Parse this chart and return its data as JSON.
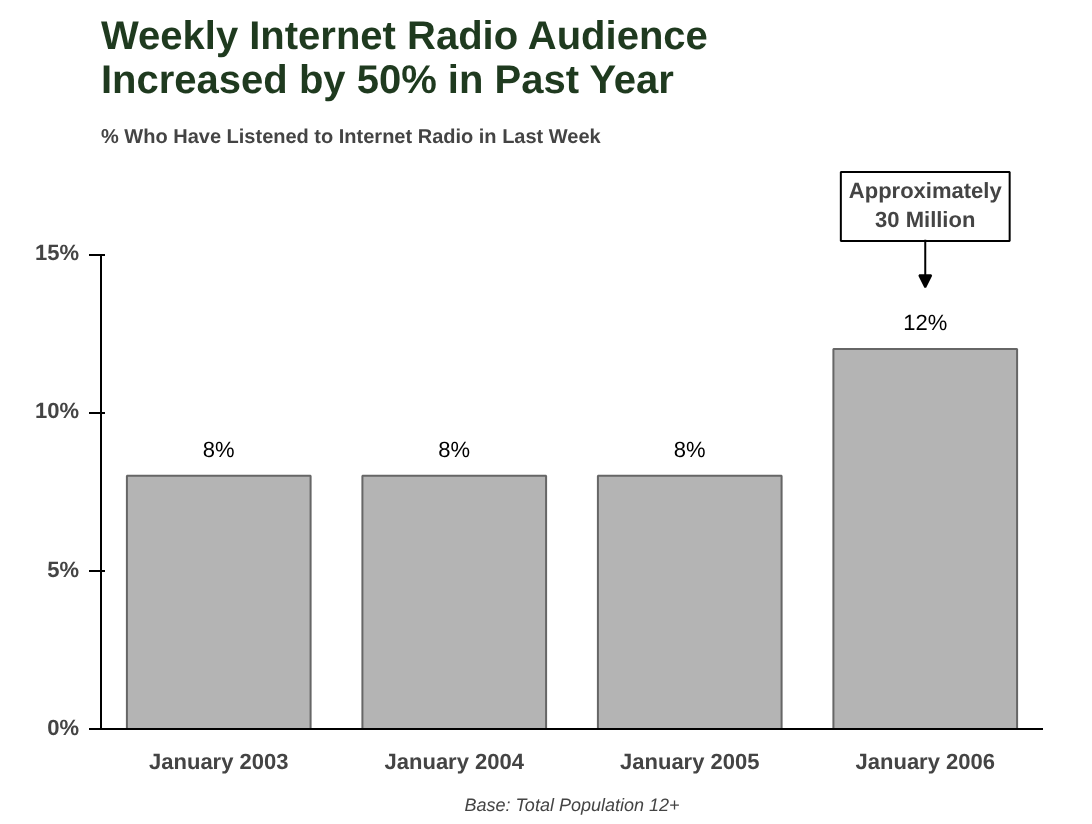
{
  "chart_data": {
    "type": "bar",
    "title": "Weekly Internet Radio Audience\nIncreased by 50% in Past Year",
    "subtitle": "% Who Have Listened to Internet Radio in Last Week",
    "categories": [
      "January 2003",
      "January 2004",
      "January 2005",
      "January 2006"
    ],
    "values": [
      8,
      8,
      8,
      12
    ],
    "color": "#b4b4b4",
    "value_labels": [
      "8%",
      "8%",
      "8%",
      "12%"
    ],
    "ylim": [
      0,
      15
    ],
    "yticks": [
      {
        "value": 0,
        "label": "0%"
      },
      {
        "value": 5,
        "label": "5%"
      },
      {
        "value": 10,
        "label": "10%"
      },
      {
        "value": 15,
        "label": "15%"
      }
    ],
    "annotations": [
      "Approximately\n30 Million",
      "Base: Total Population 12+"
    ]
  }
}
